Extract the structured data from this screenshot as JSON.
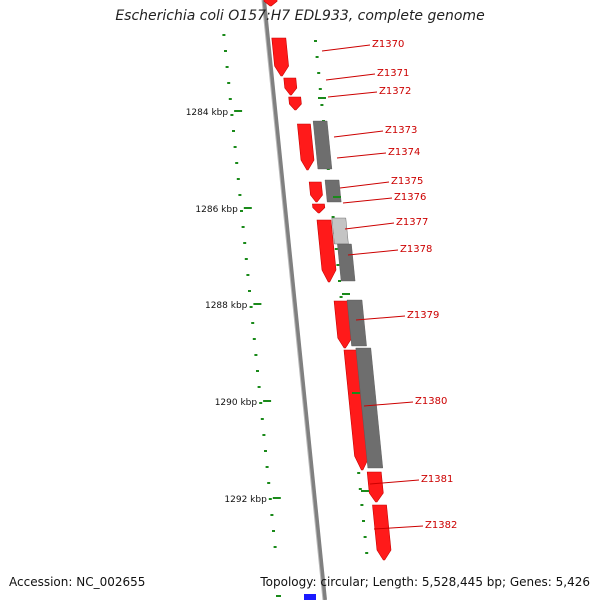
{
  "title": "Escherichia coli O157:H7 EDL933, complete genome",
  "footer": {
    "accession": "Accession: NC_002655",
    "summary": "Topology: circular; Length: 5,528,445 bp; Genes: 5,426"
  },
  "scale_labels": [
    "1284 kbp",
    "1286 kbp",
    "1288 kbp",
    "1290 kbp",
    "1292 kbp"
  ],
  "genes": [
    "Z1370",
    "Z1371",
    "Z1372",
    "Z1373",
    "Z1374",
    "Z1375",
    "Z1376",
    "Z1377",
    "Z1378",
    "Z1379",
    "Z1380",
    "Z1381",
    "Z1382"
  ],
  "colors": {
    "gene": "#ff1a1a",
    "gene_dark": "#c80000",
    "gene_label": "#cc0000",
    "scale": "#1a8a1a",
    "backbone": "#808080",
    "feature_gray": "#6e6e6e",
    "feature_light": "#c4c4c4",
    "marker_blue": "#1a1aff"
  }
}
